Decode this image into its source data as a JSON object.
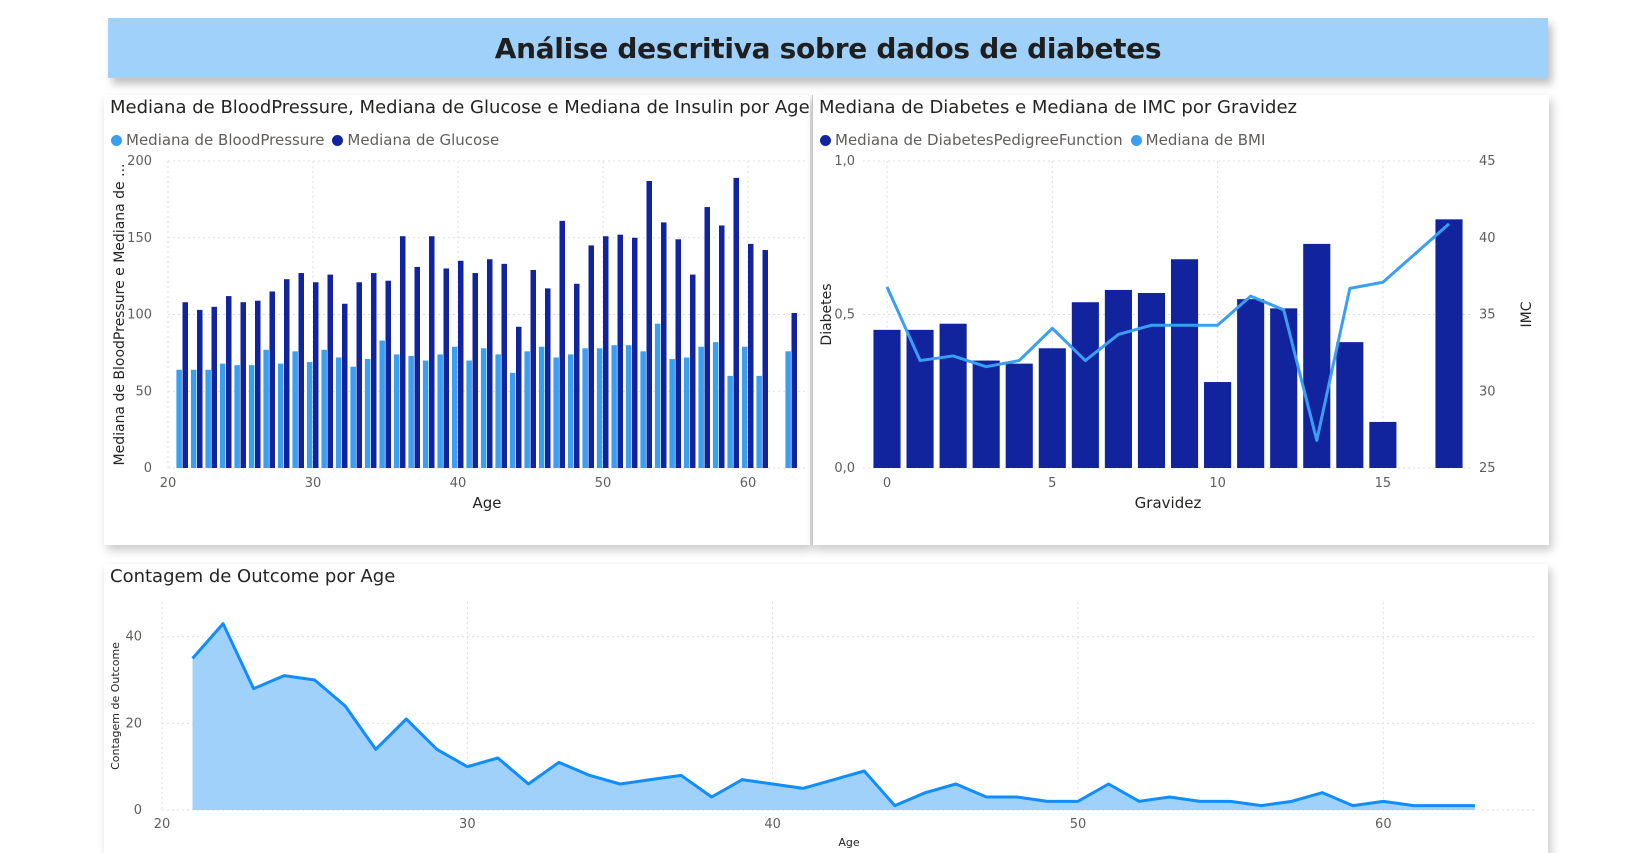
{
  "page": {
    "title": "Análise descritiva sobre dados de diabetes"
  },
  "colors": {
    "dark": "#12239e",
    "light": "#3a9ff2",
    "area_line": "#118dff",
    "area_fill": "#a0d1fb",
    "grid": "#e1dfdd",
    "axis_text": "#605e5c"
  },
  "chart_data": [
    {
      "type": "bar",
      "title": "Mediana de BloodPressure, Mediana de Glucose e Mediana de Insulin por Age",
      "xlabel": "Age",
      "ylabel": "Mediana de BloodPressure e Mediana de ...",
      "xlim": [
        20,
        64
      ],
      "ylim": [
        0,
        200
      ],
      "xticks": [
        "20",
        "30",
        "40",
        "50",
        "60"
      ],
      "yticks": [
        "0",
        "50",
        "100",
        "150",
        "200"
      ],
      "grid": true,
      "legend_position": "top-left",
      "x": [
        21,
        22,
        23,
        24,
        25,
        26,
        27,
        28,
        29,
        30,
        31,
        32,
        33,
        34,
        35,
        36,
        37,
        38,
        39,
        40,
        41,
        42,
        43,
        44,
        45,
        46,
        47,
        48,
        49,
        50,
        51,
        52,
        53,
        54,
        55,
        56,
        57,
        58,
        59,
        60,
        61,
        62,
        63
      ],
      "series": [
        {
          "name": "Mediana de BloodPressure",
          "color": "#3a9ff2",
          "values": [
            64,
            64,
            64,
            68,
            67,
            67,
            77,
            68,
            76,
            69,
            77,
            72,
            66,
            71,
            83,
            74,
            73,
            70,
            74,
            79,
            70,
            78,
            74,
            62,
            76,
            79,
            72,
            74,
            78,
            78,
            80,
            80,
            76,
            94,
            71,
            72,
            79,
            82,
            60,
            79,
            60,
            null,
            76
          ]
        },
        {
          "name": "Mediana de Glucose",
          "color": "#12239e",
          "values": [
            108,
            103,
            105,
            112,
            108,
            109,
            115,
            123,
            127,
            121,
            126,
            107,
            121,
            127,
            122,
            151,
            131,
            151,
            130,
            135,
            127,
            136,
            133,
            92,
            129,
            117,
            161,
            120,
            145,
            151,
            152,
            150,
            187,
            160,
            149,
            126,
            170,
            158,
            189,
            146,
            142,
            null,
            101
          ]
        }
      ]
    },
    {
      "type": "bar",
      "title": "Mediana de Diabetes e Mediana de IMC por Gravidez",
      "xlabel": "Gravidez",
      "ylabel": "Diabetes",
      "y2label": "IMC",
      "xlim": [
        0,
        17
      ],
      "ylim": [
        0,
        1.0
      ],
      "y2lim": [
        25,
        45
      ],
      "xticks": [
        "0",
        "5",
        "10",
        "15"
      ],
      "yticks": [
        "0,0",
        "0,5",
        "1,0"
      ],
      "y2ticks": [
        "25",
        "30",
        "35",
        "40",
        "45"
      ],
      "grid": true,
      "legend_position": "top-left",
      "x": [
        0,
        1,
        2,
        3,
        4,
        5,
        6,
        7,
        8,
        9,
        10,
        11,
        12,
        13,
        14,
        15,
        16,
        17
      ],
      "series": [
        {
          "name": "Mediana de DiabetesPedigreeFunction",
          "color": "#12239e",
          "type": "bar",
          "axis": "left",
          "values": [
            0.45,
            0.45,
            0.47,
            0.35,
            0.34,
            0.39,
            0.54,
            0.58,
            0.57,
            0.68,
            0.28,
            0.55,
            0.52,
            0.73,
            0.41,
            0.15,
            null,
            0.81
          ]
        },
        {
          "name": "Mediana de BMI",
          "color": "#3a9ff2",
          "type": "line",
          "axis": "right",
          "values": [
            36.8,
            32.0,
            32.3,
            31.6,
            32.0,
            34.1,
            32.0,
            33.7,
            34.3,
            34.3,
            34.3,
            36.2,
            35.3,
            26.8,
            36.7,
            37.1,
            null,
            40.9
          ]
        }
      ]
    },
    {
      "type": "area",
      "title": "Contagem de Outcome por Age",
      "xlabel": "Age",
      "ylabel": "Contagem de Outcome",
      "xlim": [
        20,
        65
      ],
      "ylim": [
        0,
        48
      ],
      "xticks": [
        "20",
        "30",
        "40",
        "50",
        "60"
      ],
      "yticks": [
        "0",
        "20",
        "40"
      ],
      "grid": true,
      "x": [
        21,
        22,
        23,
        24,
        25,
        26,
        27,
        28,
        29,
        30,
        31,
        32,
        33,
        34,
        35,
        36,
        37,
        38,
        39,
        40,
        41,
        42,
        43,
        44,
        45,
        46,
        47,
        48,
        49,
        50,
        51,
        52,
        53,
        54,
        55,
        56,
        57,
        58,
        59,
        60,
        61,
        62,
        63
      ],
      "series": [
        {
          "name": "Contagem de Outcome",
          "values": [
            35,
            43,
            28,
            31,
            30,
            24,
            14,
            21,
            14,
            10,
            12,
            6,
            11,
            8,
            6,
            7,
            8,
            3,
            7,
            6,
            5,
            7,
            9,
            1,
            4,
            6,
            3,
            3,
            2,
            2,
            6,
            2,
            3,
            2,
            2,
            1,
            2,
            4,
            1,
            2,
            1,
            1,
            1
          ]
        }
      ]
    }
  ]
}
